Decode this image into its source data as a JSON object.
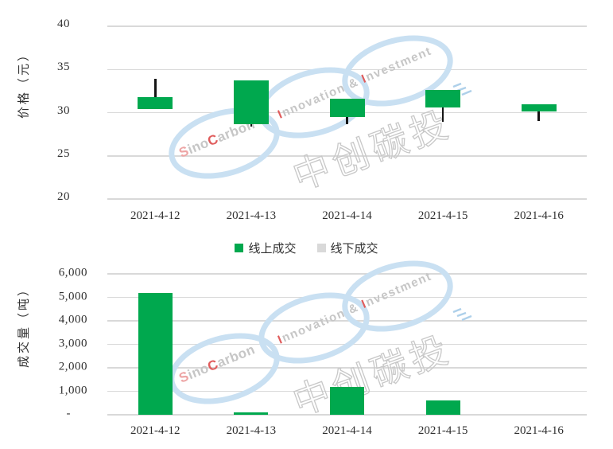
{
  "page": {
    "background": "#ffffff"
  },
  "legend": {
    "items": [
      {
        "label": "线上成交",
        "color": "#00a84e"
      },
      {
        "label": "线下成交",
        "color": "#d9d9d9"
      }
    ]
  },
  "watermark": {
    "brand_s": "S",
    "brand_ino": "ino",
    "brand_c": "C",
    "brand_arbon": "arbon",
    "tag_i1": "I",
    "tag_mid": "nnovation & ",
    "tag_i2": "I",
    "tag_rest": "nvestment",
    "cn": "中创碳投",
    "ring_color": "#c9e0f2",
    "text_gray": "#c6c6c6",
    "accent_red": "#e05c5c",
    "accent_pink": "#eda5a5"
  },
  "chart_data": [
    {
      "type": "candlestick",
      "name": "price",
      "title": "",
      "ylabel": "价格（元）",
      "ylim": [
        20,
        40
      ],
      "grid": true,
      "y_ticks": [
        {
          "label": "40",
          "value": 40
        },
        {
          "label": "35",
          "value": 35
        },
        {
          "label": "30",
          "value": 30
        },
        {
          "label": "25",
          "value": 25
        },
        {
          "label": "20",
          "value": 20
        }
      ],
      "categories": [
        "2021-4-12",
        "2021-4-13",
        "2021-4-14",
        "2021-4-15",
        "2021-4-16"
      ],
      "series": [
        {
          "name": "线上成交",
          "color": "#00a84e",
          "candles": [
            {
              "date": "2021-4-12",
              "high": 33.9,
              "body_top": 31.8,
              "body_bottom": 30.4,
              "low": 30.4
            },
            {
              "date": "2021-4-13",
              "high": 33.7,
              "body_top": 33.7,
              "body_bottom": 28.7,
              "low": 28.4
            },
            {
              "date": "2021-4-14",
              "high": 31.6,
              "body_top": 31.6,
              "body_bottom": 29.5,
              "low": 28.7
            },
            {
              "date": "2021-4-15",
              "high": 32.6,
              "body_top": 32.6,
              "body_bottom": 30.6,
              "low": 28.9
            },
            {
              "date": "2021-4-16",
              "high": 31.0,
              "body_top": 31.0,
              "body_bottom": 30.1,
              "low": 29.0
            }
          ]
        }
      ],
      "legend_entries": [
        "线上成交",
        "线下成交"
      ]
    },
    {
      "type": "bar",
      "name": "volume",
      "title": "",
      "ylabel": "成交量（吨）",
      "ylim": [
        0,
        6000
      ],
      "grid": true,
      "y_ticks": [
        {
          "label": "6,000",
          "value": 6000
        },
        {
          "label": "5,000",
          "value": 5000
        },
        {
          "label": "4,000",
          "value": 4000
        },
        {
          "label": "3,000",
          "value": 3000
        },
        {
          "label": "2,000",
          "value": 2000
        },
        {
          "label": "1,000",
          "value": 1000
        },
        {
          "label": "-",
          "value": 0
        }
      ],
      "categories": [
        "2021-4-12",
        "2021-4-13",
        "2021-4-14",
        "2021-4-15",
        "2021-4-16"
      ],
      "series": [
        {
          "name": "线上成交",
          "color": "#00a84e",
          "values": [
            5200,
            100,
            1200,
            600,
            0
          ]
        }
      ]
    }
  ]
}
